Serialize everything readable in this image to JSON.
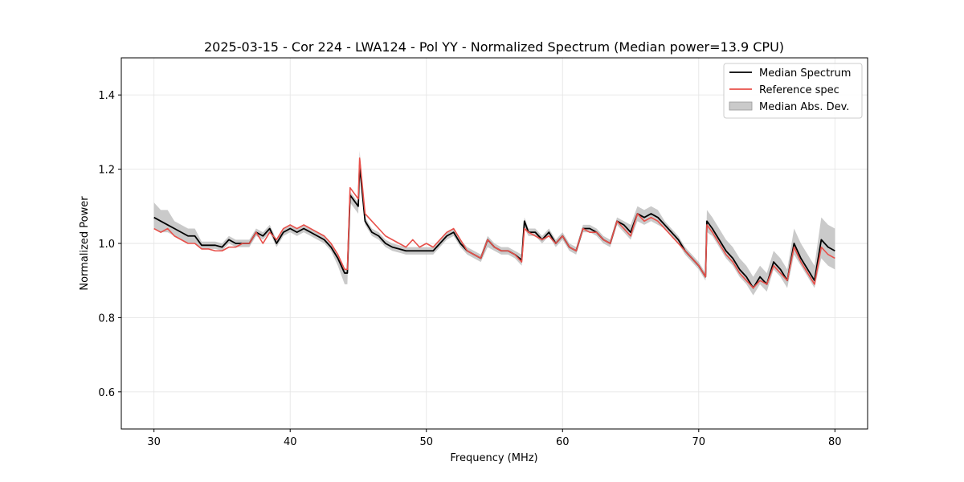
{
  "chart_data": {
    "type": "line",
    "title": "2025-03-15 - Cor 224 - LWA124 - Pol YY - Normalized Spectrum (Median power=13.9 CPU)",
    "xlabel": "Frequency (MHz)",
    "ylabel": "Normalized Power",
    "xlim": [
      27.6,
      82.4
    ],
    "ylim": [
      0.5,
      1.5
    ],
    "xticks": [
      30,
      40,
      50,
      60,
      70,
      80
    ],
    "xtick_labels": [
      "30",
      "40",
      "50",
      "60",
      "70",
      "80"
    ],
    "yticks": [
      0.6,
      0.8,
      1.0,
      1.2,
      1.4
    ],
    "ytick_labels": [
      "0.6",
      "0.8",
      "1.0",
      "1.2",
      "1.4"
    ],
    "grid": true,
    "legend_position": "top-right",
    "legend": [
      "Median Spectrum",
      "Reference spec",
      "Median Abs. Dev."
    ],
    "colors": {
      "median": "#000000",
      "reference": "#e8504a",
      "mad": "#b8b8b8"
    },
    "x": [
      30.0,
      30.5,
      31.0,
      31.5,
      32.0,
      32.5,
      33.0,
      33.5,
      34.0,
      34.5,
      35.0,
      35.5,
      36.0,
      36.5,
      37.0,
      37.5,
      38.0,
      38.5,
      39.0,
      39.5,
      40.0,
      40.5,
      41.0,
      41.5,
      42.0,
      42.5,
      43.0,
      43.5,
      44.0,
      44.2,
      44.4,
      45.0,
      45.1,
      45.5,
      46.0,
      46.5,
      47.0,
      47.5,
      48.0,
      48.5,
      49.0,
      49.5,
      50.0,
      50.5,
      51.0,
      51.5,
      52.0,
      52.5,
      53.0,
      53.5,
      54.0,
      54.5,
      55.0,
      55.5,
      56.0,
      56.5,
      57.0,
      57.2,
      57.5,
      58.0,
      58.5,
      59.0,
      59.5,
      60.0,
      60.5,
      61.0,
      61.5,
      62.0,
      62.5,
      63.0,
      63.5,
      64.0,
      64.5,
      65.0,
      65.5,
      66.0,
      66.5,
      67.0,
      67.5,
      68.0,
      68.5,
      69.0,
      69.5,
      70.0,
      70.5,
      70.6,
      71.0,
      71.5,
      72.0,
      72.5,
      73.0,
      73.5,
      74.0,
      74.5,
      75.0,
      75.5,
      76.0,
      76.5,
      77.0,
      77.5,
      78.0,
      78.5,
      79.0,
      79.5,
      80.0
    ],
    "series": [
      {
        "name": "Median Spectrum",
        "values": [
          1.07,
          1.06,
          1.05,
          1.04,
          1.03,
          1.02,
          1.02,
          0.995,
          0.995,
          0.995,
          0.99,
          1.01,
          1.0,
          1.0,
          1.0,
          1.03,
          1.02,
          1.04,
          1.0,
          1.03,
          1.04,
          1.03,
          1.04,
          1.03,
          1.02,
          1.01,
          0.99,
          0.96,
          0.92,
          0.92,
          1.13,
          1.1,
          1.21,
          1.06,
          1.03,
          1.02,
          1.0,
          0.99,
          0.985,
          0.98,
          0.98,
          0.98,
          0.98,
          0.98,
          1.0,
          1.02,
          1.03,
          1.0,
          0.98,
          0.97,
          0.96,
          1.01,
          0.99,
          0.98,
          0.98,
          0.97,
          0.955,
          1.06,
          1.03,
          1.03,
          1.01,
          1.03,
          1.0,
          1.02,
          0.99,
          0.98,
          1.04,
          1.04,
          1.03,
          1.01,
          1.0,
          1.06,
          1.05,
          1.03,
          1.08,
          1.07,
          1.08,
          1.07,
          1.05,
          1.03,
          1.01,
          0.98,
          0.96,
          0.94,
          0.91,
          1.06,
          1.04,
          1.01,
          0.98,
          0.96,
          0.93,
          0.91,
          0.88,
          0.91,
          0.89,
          0.95,
          0.93,
          0.9,
          1.0,
          0.96,
          0.93,
          0.9,
          1.01,
          0.99,
          0.98
        ]
      },
      {
        "name": "Reference spec",
        "values": [
          1.04,
          1.03,
          1.04,
          1.02,
          1.01,
          1.0,
          1.0,
          0.985,
          0.985,
          0.98,
          0.98,
          0.99,
          0.99,
          1.0,
          1.0,
          1.03,
          1.0,
          1.03,
          1.01,
          1.04,
          1.05,
          1.04,
          1.05,
          1.04,
          1.03,
          1.02,
          1.0,
          0.97,
          0.93,
          0.93,
          1.15,
          1.12,
          1.23,
          1.08,
          1.06,
          1.04,
          1.02,
          1.01,
          1.0,
          0.99,
          1.01,
          0.99,
          1.0,
          0.99,
          1.01,
          1.03,
          1.04,
          1.01,
          0.98,
          0.97,
          0.96,
          1.01,
          0.99,
          0.98,
          0.98,
          0.97,
          0.95,
          1.04,
          1.03,
          1.02,
          1.01,
          1.02,
          1.0,
          1.02,
          0.99,
          0.98,
          1.04,
          1.03,
          1.03,
          1.01,
          1.0,
          1.06,
          1.04,
          1.02,
          1.08,
          1.06,
          1.07,
          1.06,
          1.04,
          1.02,
          1.0,
          0.98,
          0.96,
          0.94,
          0.91,
          1.05,
          1.03,
          1.0,
          0.97,
          0.95,
          0.92,
          0.9,
          0.88,
          0.9,
          0.89,
          0.94,
          0.92,
          0.9,
          0.99,
          0.95,
          0.92,
          0.89,
          0.99,
          0.97,
          0.96
        ]
      }
    ],
    "band": {
      "name": "Median Abs. Dev.",
      "lower": [
        1.04,
        1.03,
        1.03,
        1.02,
        1.01,
        1.0,
        1.0,
        0.985,
        0.985,
        0.985,
        0.98,
        1.0,
        0.99,
        0.99,
        0.99,
        1.02,
        1.01,
        1.03,
        0.99,
        1.02,
        1.03,
        1.02,
        1.03,
        1.02,
        1.01,
        1.0,
        0.98,
        0.94,
        0.89,
        0.89,
        1.11,
        1.08,
        1.19,
        1.05,
        1.02,
        1.01,
        0.99,
        0.98,
        0.975,
        0.97,
        0.97,
        0.97,
        0.97,
        0.97,
        0.99,
        1.01,
        1.02,
        0.99,
        0.97,
        0.96,
        0.95,
        0.99,
        0.98,
        0.97,
        0.97,
        0.96,
        0.94,
        1.04,
        1.02,
        1.02,
        1.0,
        1.02,
        0.99,
        1.01,
        0.98,
        0.97,
        1.03,
        1.03,
        1.02,
        1.0,
        0.99,
        1.05,
        1.03,
        1.01,
        1.06,
        1.05,
        1.06,
        1.05,
        1.04,
        1.02,
        1.0,
        0.97,
        0.95,
        0.93,
        0.9,
        1.03,
        1.02,
        0.99,
        0.96,
        0.94,
        0.91,
        0.89,
        0.86,
        0.89,
        0.87,
        0.93,
        0.91,
        0.88,
        0.97,
        0.94,
        0.91,
        0.88,
        0.96,
        0.94,
        0.93
      ],
      "upper": [
        1.11,
        1.09,
        1.09,
        1.06,
        1.05,
        1.04,
        1.04,
        1.005,
        1.005,
        1.005,
        1.0,
        1.02,
        1.01,
        1.01,
        1.01,
        1.04,
        1.03,
        1.05,
        1.01,
        1.04,
        1.05,
        1.04,
        1.05,
        1.04,
        1.03,
        1.02,
        1.0,
        0.97,
        0.93,
        0.93,
        1.14,
        1.11,
        1.25,
        1.07,
        1.04,
        1.03,
        1.01,
        1.0,
        0.995,
        0.99,
        0.99,
        0.99,
        0.99,
        0.99,
        1.01,
        1.03,
        1.04,
        1.01,
        0.99,
        0.98,
        0.97,
        1.02,
        1.0,
        0.99,
        0.99,
        0.98,
        0.97,
        1.07,
        1.04,
        1.04,
        1.02,
        1.04,
        1.01,
        1.03,
        1.0,
        0.99,
        1.05,
        1.05,
        1.04,
        1.02,
        1.01,
        1.07,
        1.06,
        1.05,
        1.1,
        1.09,
        1.1,
        1.09,
        1.06,
        1.04,
        1.02,
        0.99,
        0.97,
        0.95,
        0.92,
        1.09,
        1.07,
        1.04,
        1.01,
        0.99,
        0.96,
        0.94,
        0.91,
        0.94,
        0.92,
        0.98,
        0.96,
        0.93,
        1.04,
        1.0,
        0.97,
        0.94,
        1.07,
        1.05,
        1.04
      ]
    }
  }
}
